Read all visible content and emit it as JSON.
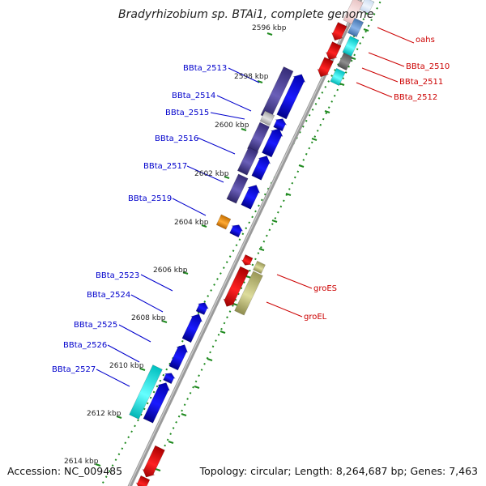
{
  "title": "Bradyrhizobium sp. BTAi1, complete genome",
  "accession": "Accession: NC_009485",
  "summary": "Topology: circular; Length: 8,264,687 bp; Genes: 7,463",
  "colors": {
    "backbone": "#9a9a9a",
    "tick": "#1f8a1f",
    "label_left": "#0000cc",
    "label_right": "#cc0000",
    "blue": "#0000ee",
    "purple": "#4a3f95",
    "gray": "#bdbdbd",
    "orange": "#ee8800",
    "red": "#ee0000",
    "olive": "#b9b77a",
    "cyan": "#00e5e5",
    "darkgray": "#6e6e6e",
    "steelblue": "#5b8cc8"
  },
  "kbp_labels": [
    "2596 kbp",
    "2598 kbp",
    "2600 kbp",
    "2602 kbp",
    "2604 kbp",
    "2606 kbp",
    "2608 kbp",
    "2610 kbp",
    "2612 kbp",
    "2614 kbp"
  ],
  "genes_left": [
    "BBta_2513",
    "BBta_2514",
    "BBta_2515",
    "BBta_2516",
    "BBta_2517",
    "BBta_2519",
    "BBta_2523",
    "BBta_2524",
    "BBta_2525",
    "BBta_2526",
    "BBta_2527"
  ],
  "genes_right": [
    "oahs",
    "BBta_2510",
    "BBta_2511",
    "BBta_2512",
    "groES",
    "groEL"
  ]
}
